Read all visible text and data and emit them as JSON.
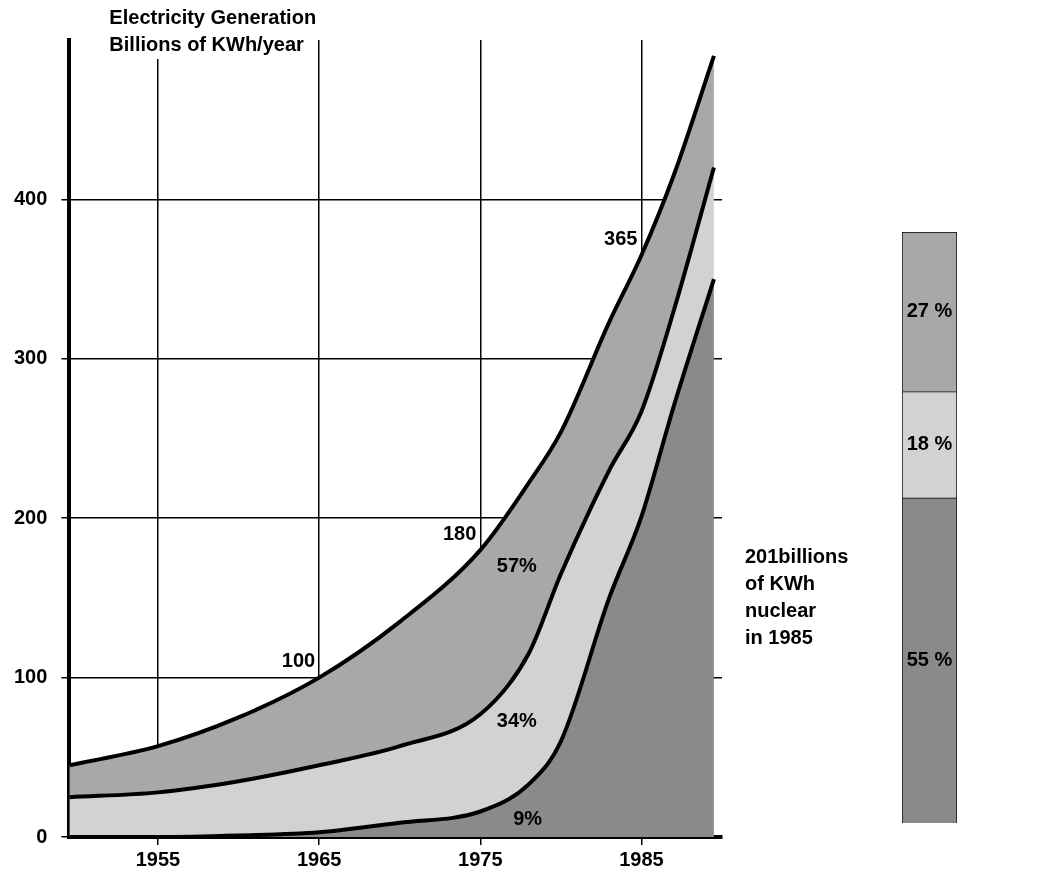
{
  "chart_data": [
    {
      "type": "area",
      "stacked": true,
      "ylabel": "Electricity Generation\nBillions of KWh/year",
      "x": [
        1949.5,
        1955,
        1960,
        1965,
        1970,
        1975,
        1978,
        1980,
        1983,
        1985,
        1987,
        1989.5
      ],
      "series": [
        {
          "color": "#8a8a8a",
          "values": [
            0,
            0,
            1,
            3,
            9,
            16,
            33,
            60,
            150,
            201,
            270,
            350
          ]
        },
        {
          "color": "#d2d2d2",
          "values": [
            25,
            28,
            34,
            42,
            48,
            61,
            82,
            105,
            80,
            66,
            60,
            70
          ]
        },
        {
          "color": "#a8a8a8",
          "values": [
            20,
            29,
            40,
            55,
            78,
            103,
            107,
            89,
            93,
            98,
            85,
            70
          ]
        }
      ],
      "annotations": [
        "57%",
        "34%",
        "9%"
      ],
      "totals": [
        null,
        null,
        null,
        "100",
        null,
        "180",
        null,
        null,
        null,
        "365",
        null,
        null
      ],
      "xlim": [
        1949.5,
        1990
      ],
      "xticks": [
        1955,
        1965,
        1975,
        1985
      ],
      "ylim": [
        0,
        500
      ],
      "yticks": [
        0,
        100,
        200,
        300,
        400
      ],
      "grid": true,
      "legend": false
    },
    {
      "type": "bar",
      "stacked": true,
      "categories": [
        null
      ],
      "legend": false,
      "series": [
        {
          "color": "#8a8a8a",
          "values": [
            55
          ],
          "value_labels": [
            "55 %"
          ]
        },
        {
          "color": "#d2d2d2",
          "values": [
            18
          ],
          "value_labels": [
            "18 %"
          ]
        },
        {
          "color": "#a8a8a8",
          "values": [
            27
          ],
          "value_labels": [
            "27 %"
          ]
        }
      ],
      "annotations": [
        "201billions\nof KWh\nnuclear\nin 1985"
      ]
    }
  ]
}
